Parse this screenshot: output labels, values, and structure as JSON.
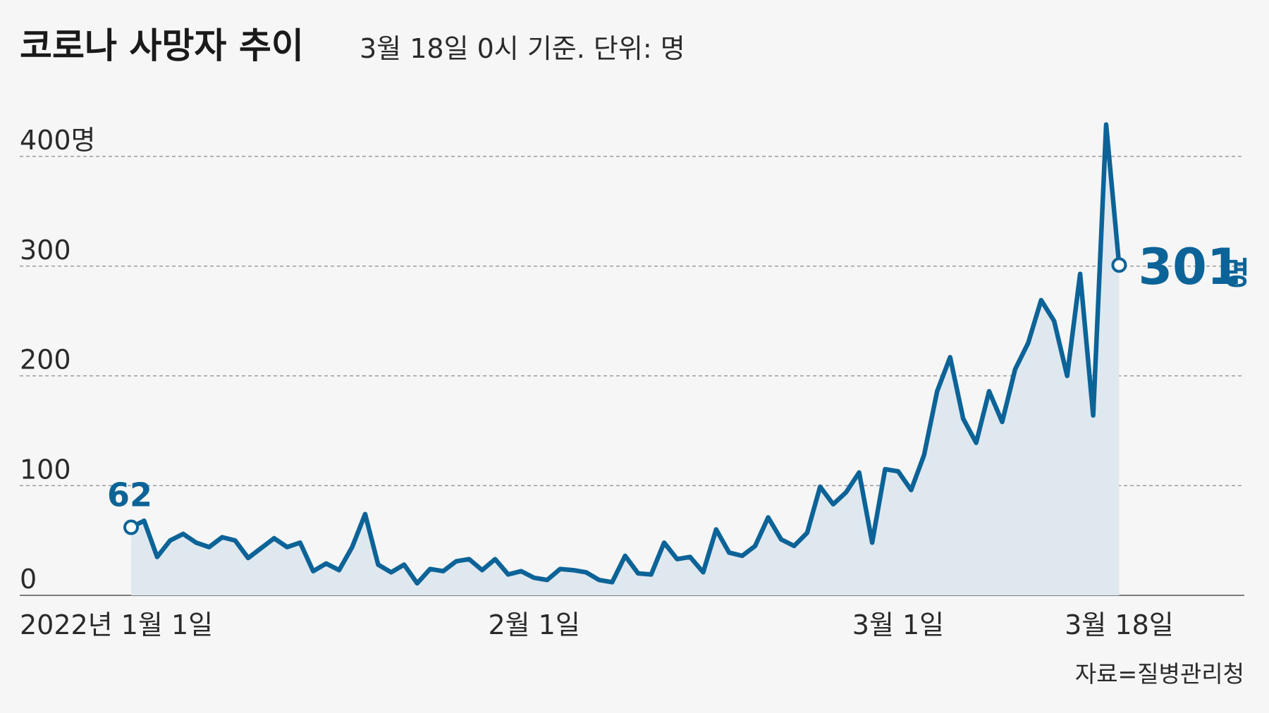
{
  "header": {
    "title": "코로나 사망자 추이",
    "subtitle": "3월 18일 0시 기준. 단위: 명"
  },
  "source": "자료=질병관리청",
  "colors": {
    "line": "#0b6397",
    "area": "#dfe7ef",
    "background": "#f6f6f6"
  },
  "chart_data": {
    "type": "area",
    "title": "코로나 사망자 추이",
    "subtitle": "3월 18일 0시 기준. 단위: 명",
    "ylim": [
      0,
      400
    ],
    "yticks": [
      0,
      100,
      200,
      300,
      400
    ],
    "ytick_labels": [
      "0",
      "100",
      "200",
      "300",
      "400명"
    ],
    "grid": true,
    "xtick_labels": [
      {
        "day_index": 0,
        "label": "2022년 1월 1일"
      },
      {
        "day_index": 31,
        "label": "2월 1일"
      },
      {
        "day_index": 59,
        "label": "3월 1일"
      },
      {
        "day_index": 76,
        "label": "3월 18일"
      }
    ],
    "annotations": {
      "start": {
        "value": "62"
      },
      "end": {
        "value": "301",
        "unit": "명"
      }
    },
    "series": [
      {
        "values": [
          62,
          68,
          35,
          50,
          56,
          48,
          44,
          53,
          50,
          34,
          43,
          52,
          44,
          48,
          22,
          29,
          23,
          44,
          74,
          28,
          21,
          28,
          11,
          24,
          22,
          31,
          33,
          23,
          33,
          19,
          22,
          16,
          14,
          24,
          23,
          21,
          14,
          12,
          36,
          20,
          19,
          48,
          33,
          35,
          21,
          60,
          39,
          36,
          45,
          71,
          51,
          45,
          57,
          99,
          83,
          94,
          112,
          48,
          115,
          113,
          96,
          128,
          186,
          217,
          161,
          139,
          186,
          158,
          206,
          230,
          269,
          250,
          200,
          293,
          164,
          429,
          301
        ]
      }
    ]
  }
}
